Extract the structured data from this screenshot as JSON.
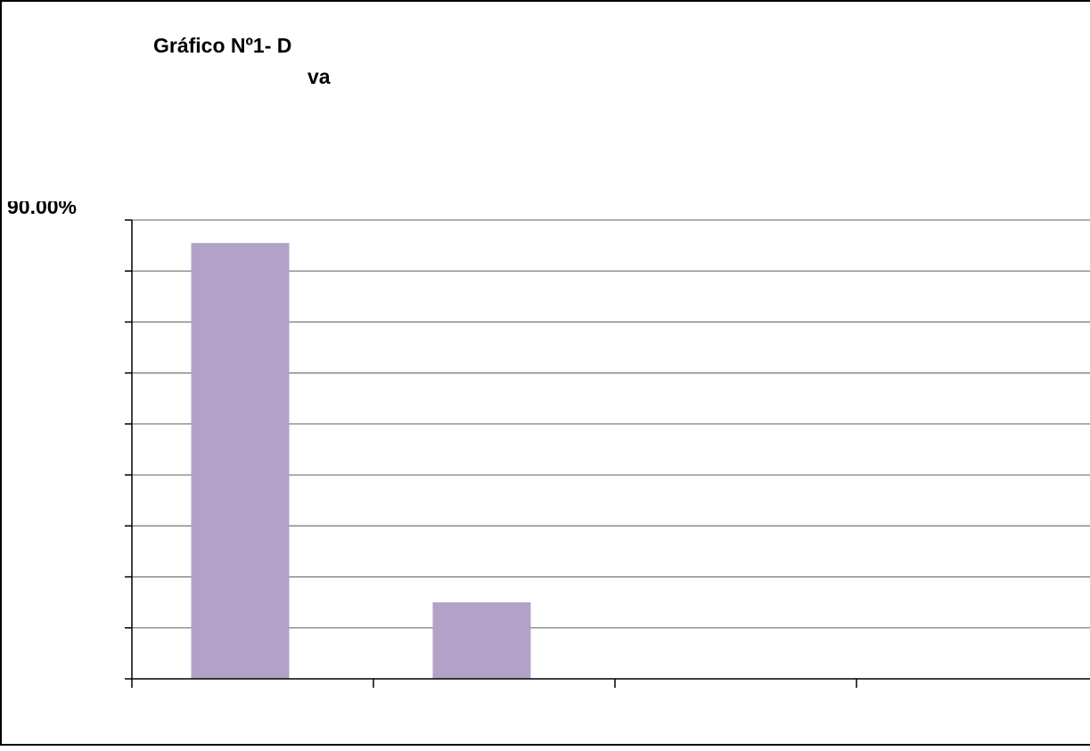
{
  "chart_data": {
    "type": "bar",
    "title_lines": [
      "Gráfico Nº1- D",
      "va"
    ],
    "ytick_top_label": "90.00%",
    "ylim": [
      0,
      90
    ],
    "gridline_count": 9,
    "grid": true,
    "categories": [
      "",
      "",
      "",
      ""
    ],
    "series": [
      {
        "values": [
          85.5,
          15,
          0,
          0
        ]
      }
    ],
    "colors": {
      "bar": "#b2a2c7",
      "grid": "#7f7f7f",
      "axis": "#000000",
      "frame": "#000000"
    }
  }
}
